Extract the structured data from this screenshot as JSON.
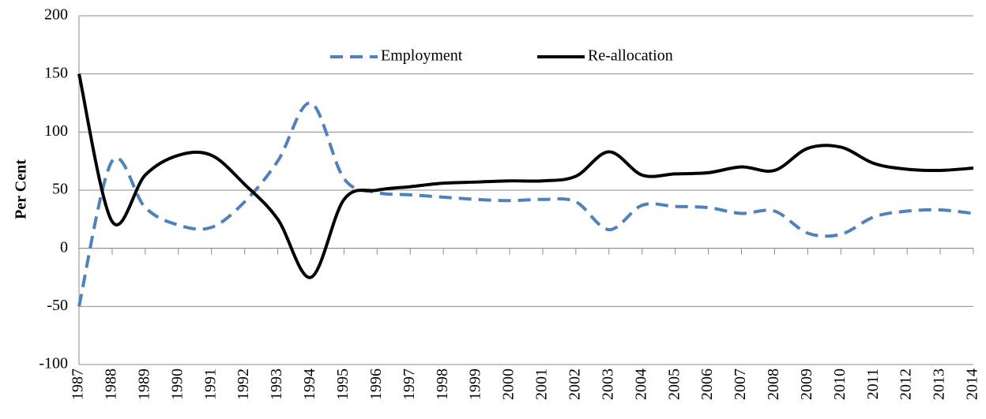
{
  "chart_data": {
    "type": "line",
    "y_label": "Per Cent",
    "categories": [
      "1987",
      "1988",
      "1989",
      "1990",
      "1991",
      "1992",
      "1993",
      "1994",
      "1995",
      "1996",
      "1997",
      "1998",
      "1999",
      "2000",
      "2001",
      "2002",
      "2003",
      "2004",
      "2005",
      "2006",
      "2007",
      "2008",
      "2009",
      "2010",
      "2011",
      "2012",
      "2013",
      "2014"
    ],
    "series": [
      {
        "name": "Employment",
        "color": "#4f81bd",
        "dash": true,
        "values": [
          -50,
          75,
          35,
          20,
          18,
          40,
          75,
          125,
          60,
          48,
          46,
          44,
          42,
          41,
          42,
          40,
          16,
          37,
          36,
          35,
          30,
          32,
          13,
          12,
          27,
          32,
          33,
          30
        ]
      },
      {
        "name": "Re-allocation",
        "color": "#000000",
        "dash": false,
        "values": [
          150,
          23,
          63,
          80,
          80,
          55,
          25,
          -25,
          42,
          50,
          53,
          56,
          57,
          58,
          58,
          62,
          83,
          63,
          64,
          65,
          70,
          67,
          86,
          87,
          73,
          68,
          67,
          69
        ]
      }
    ],
    "ylim": [
      -100,
      200
    ],
    "yticks": [
      -100,
      -50,
      0,
      50,
      100,
      150,
      200
    ],
    "grid": true,
    "legend": "top"
  }
}
